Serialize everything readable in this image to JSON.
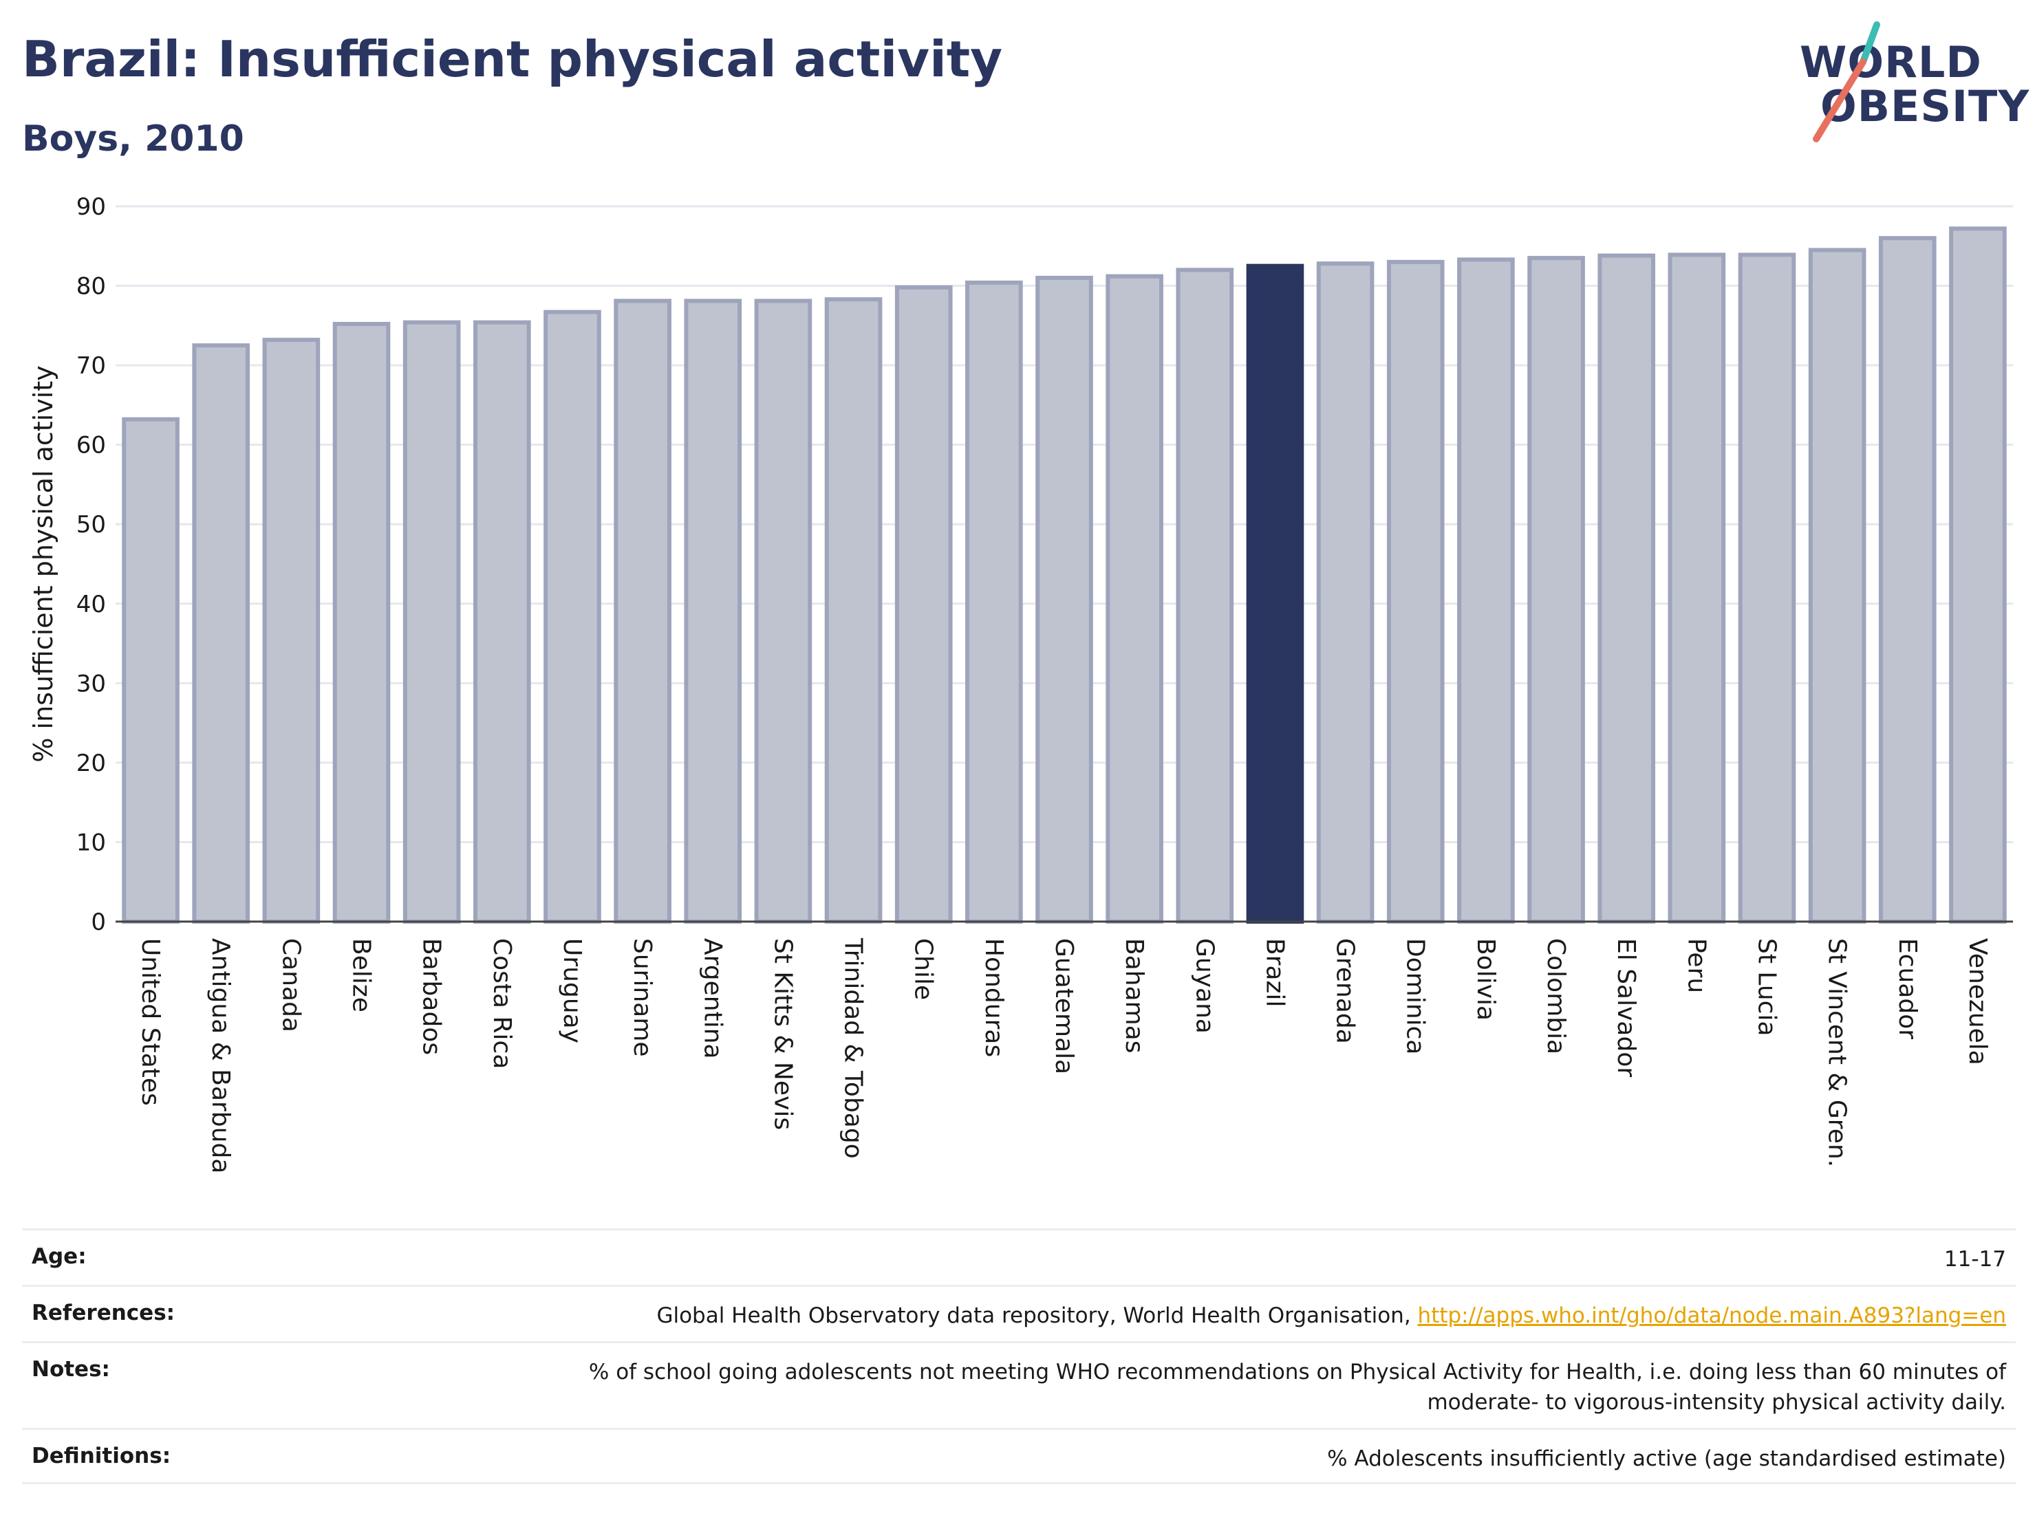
{
  "header": {
    "title": "Brazil: Insufficient physical activity",
    "subtitle": "Boys, 2010"
  },
  "logo": {
    "line1": "WORLD",
    "line2": "OBESITY"
  },
  "chart_data": {
    "type": "bar",
    "title": "Brazil: Insufficient physical activity",
    "subtitle": "Boys, 2010",
    "ylabel": "% insufficient physical activity",
    "xlabel": "",
    "ylim": [
      0,
      90
    ],
    "yticks": [
      0,
      10,
      20,
      30,
      40,
      50,
      60,
      70,
      80,
      90
    ],
    "grid": true,
    "highlight": "Brazil",
    "colors": {
      "bar": "#bfc3d0",
      "bar_edge": "#9ea4bb",
      "highlight": "#2a3560"
    },
    "categories": [
      "United States",
      "Antigua & Barbuda",
      "Canada",
      "Belize",
      "Barbados",
      "Costa Rica",
      "Uruguay",
      "Suriname",
      "Argentina",
      "St Kitts & Nevis",
      "Trinidad & Tobago",
      "Chile",
      "Honduras",
      "Guatemala",
      "Bahamas",
      "Guyana",
      "Brazil",
      "Grenada",
      "Dominica",
      "Bolivia",
      "Colombia",
      "El Salvador",
      "Peru",
      "St Lucia",
      "St Vincent & Gren.",
      "Ecuador",
      "Venezuela"
    ],
    "values": [
      63.2,
      72.5,
      73.2,
      75.2,
      75.4,
      75.4,
      76.7,
      78.1,
      78.1,
      78.1,
      78.3,
      79.8,
      80.4,
      81.0,
      81.2,
      82.0,
      82.5,
      82.8,
      83.0,
      83.3,
      83.5,
      83.8,
      83.9,
      83.9,
      84.5,
      86.0,
      87.2
    ]
  },
  "meta": [
    {
      "label": "Age:",
      "value": "11-17"
    },
    {
      "label": "References:",
      "value": "Global Health Observatory data repository, World Health Organisation, ",
      "link": "http://apps.who.int/gho/data/node.main.A893?lang=en"
    },
    {
      "label": "Notes:",
      "value": "% of school going adolescents not meeting WHO recommendations on Physical Activity for Health, i.e. doing less than 60 minutes of",
      "value2": "moderate- to vigorous-intensity physical activity daily."
    },
    {
      "label": "Definitions:",
      "value": "% Adolescents insufficiently active (age standardised estimate)"
    }
  ]
}
